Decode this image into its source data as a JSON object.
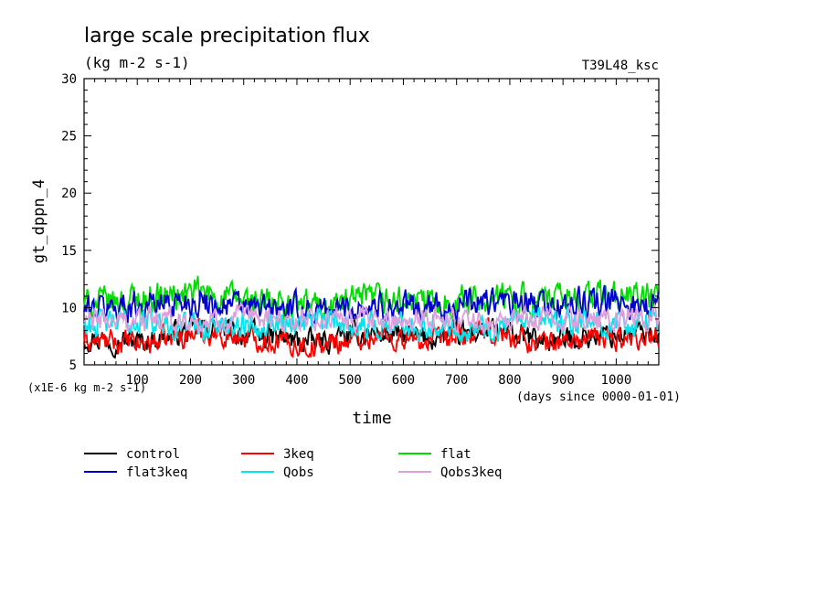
{
  "chart_data": {
    "type": "line",
    "title": "large scale precipitation flux",
    "subtitle": "(kg m-2 s-1)",
    "experiment_label": "T39L48_ksc",
    "xlabel": "time",
    "ylabel": "gt_dppn_4",
    "x_units_note": "(days since 0000-01-01)",
    "y_scale_note": "(x1E-6 kg m-2 s-1)",
    "xlim": [
      0,
      1080
    ],
    "ylim": [
      5,
      30
    ],
    "x_ticks": [
      100,
      200,
      300,
      400,
      500,
      600,
      700,
      800,
      900,
      1000
    ],
    "y_ticks": [
      5,
      10,
      15,
      20,
      25,
      30
    ],
    "grid": false,
    "legend_position": "bottom",
    "series": [
      {
        "name": "control",
        "color": "#000000",
        "mean": 7.5,
        "amplitude": 0.9,
        "values_approx": [
          7.4,
          7.0,
          8.2,
          7.6,
          6.9,
          7.8,
          7.3,
          8.0,
          7.1,
          7.6,
          7.9
        ]
      },
      {
        "name": "3keq",
        "color": "#ff0000",
        "mean": 7.2,
        "amplitude": 0.9,
        "values_approx": [
          7.1,
          6.8,
          7.9,
          7.3,
          6.6,
          7.5,
          7.0,
          7.8,
          6.9,
          7.3,
          7.6
        ]
      },
      {
        "name": "flat",
        "color": "#00dd00",
        "mean": 10.4,
        "amplitude": 1.2,
        "values_approx": [
          10.2,
          10.8,
          11.2,
          10.4,
          10.1,
          10.6,
          10.3,
          10.9,
          10.5,
          11.0,
          10.7
        ]
      },
      {
        "name": "flat3keq",
        "color": "#0000cc",
        "mean": 10.0,
        "amplitude": 1.1,
        "values_approx": [
          9.8,
          10.3,
          10.6,
          9.9,
          9.7,
          10.2,
          9.9,
          10.5,
          10.1,
          10.4,
          10.2
        ]
      },
      {
        "name": "Qobs",
        "color": "#00e5ee",
        "mean": 8.6,
        "amplitude": 1.0,
        "values_approx": [
          8.5,
          8.8,
          8.3,
          8.7,
          8.9,
          8.4,
          8.6,
          8.2,
          8.7,
          8.5,
          8.8
        ]
      },
      {
        "name": "Qobs3keq",
        "color": "#dda0dd",
        "mean": 8.9,
        "amplitude": 0.9,
        "values_approx": [
          8.8,
          9.0,
          8.7,
          9.1,
          8.9,
          8.8,
          9.2,
          8.7,
          9.0,
          8.9,
          9.1
        ]
      }
    ]
  }
}
